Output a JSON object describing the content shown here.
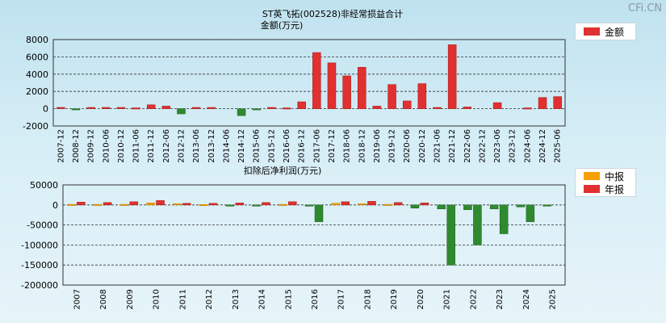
{
  "watermark": "CFi.CN",
  "colors": {
    "pos": "#e03030",
    "pos_dark": "#a81818",
    "neg": "#2f8a2f",
    "neg_dark": "#1f5e1f",
    "mid": "#f5a000",
    "mid_dark": "#c07800"
  },
  "chart_data": [
    {
      "type": "bar",
      "title": "ST英飞拓(002528)非经常损益合计",
      "subtitle": "金额(万元)",
      "legend": {
        "position": "top-right",
        "entries": [
          {
            "label": "金额",
            "color": "#e03030"
          }
        ]
      },
      "ylim": [
        -2000,
        8000
      ],
      "yticks": [
        -2000,
        0,
        2000,
        4000,
        6000,
        8000
      ],
      "grid": true,
      "categories": [
        "2007-12",
        "2008-12",
        "2009-12",
        "2010-06",
        "2010-12",
        "2011-06",
        "2011-12",
        "2012-06",
        "2012-12",
        "2013-06",
        "2013-12",
        "2014-06",
        "2014-12",
        "2015-06",
        "2015-12",
        "2016-06",
        "2016-12",
        "2017-06",
        "2017-12",
        "2018-06",
        "2018-12",
        "2019-06",
        "2019-12",
        "2020-06",
        "2020-12",
        "2021-06",
        "2021-12",
        "2022-06",
        "2022-12",
        "2023-06",
        "2023-12",
        "2024-06",
        "2024-12",
        "2025-06"
      ],
      "values": [
        150,
        -50,
        150,
        150,
        150,
        100,
        450,
        300,
        -600,
        150,
        150,
        0,
        -800,
        -50,
        150,
        100,
        800,
        6500,
        5300,
        3800,
        4800,
        300,
        2800,
        900,
        2900,
        150,
        7400,
        200,
        0,
        700,
        0,
        100,
        1300,
        1400
      ]
    },
    {
      "type": "bar",
      "title": "扣除后净利润(万元)",
      "legend": {
        "position": "top-right",
        "entries": [
          {
            "label": "中报",
            "color": "#f5a000"
          },
          {
            "label": "年报",
            "color": "#e03030"
          }
        ]
      },
      "ylim": [
        -200000,
        50000
      ],
      "yticks": [
        -200000,
        -150000,
        -100000,
        -50000,
        0,
        50000
      ],
      "grid": true,
      "categories": [
        "2007",
        "2008",
        "2009",
        "2010",
        "2011",
        "2012",
        "2013",
        "2014",
        "2015",
        "2016",
        "2017",
        "2018",
        "2019",
        "2020",
        "2021",
        "2022",
        "2023",
        "2024",
        "2025"
      ],
      "series": [
        {
          "name": "中报",
          "values": [
            1500,
            1500,
            1500,
            5000,
            3000,
            1000,
            -2000,
            -1000,
            1500,
            -2000,
            4000,
            3000,
            1500,
            -8000,
            -10000,
            -12000,
            -10000,
            -5000,
            -3000
          ]
        },
        {
          "name": "年报",
          "values": [
            7000,
            6000,
            8000,
            11000,
            4000,
            4000,
            5000,
            6000,
            8000,
            -42000,
            8000,
            9000,
            6000,
            5000,
            -150000,
            -100000,
            -72000,
            -42000,
            null
          ]
        }
      ]
    }
  ]
}
